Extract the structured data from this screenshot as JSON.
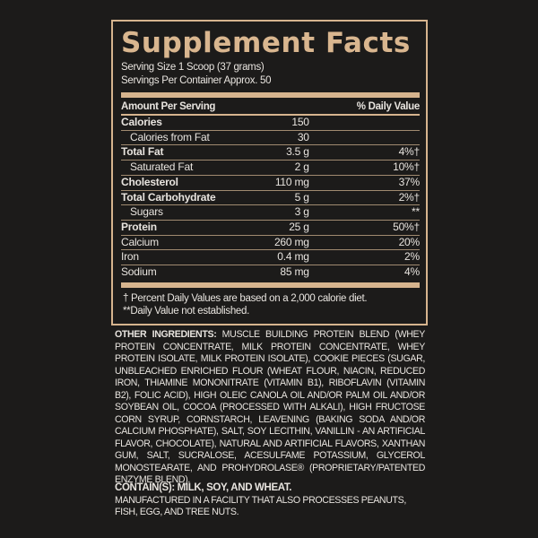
{
  "title": "Supplement Facts",
  "serving_size": "Serving Size 1 Scoop (37 grams)",
  "servings_per_container": "Servings Per Container Approx. 50",
  "header": {
    "amount": "Amount Per Serving",
    "dv": "% Daily Value"
  },
  "rows": [
    {
      "name": "Calories",
      "amount": "150",
      "dv": "",
      "bold": true,
      "indent": false
    },
    {
      "name": "Calories from Fat",
      "amount": "30",
      "dv": "",
      "bold": false,
      "indent": true
    },
    {
      "name": "Total Fat",
      "amount": "3.5 g",
      "dv": "4%†",
      "bold": true,
      "indent": false
    },
    {
      "name": "Saturated Fat",
      "amount": "2 g",
      "dv": "10%†",
      "bold": false,
      "indent": true
    },
    {
      "name": "Cholesterol",
      "amount": "110 mg",
      "dv": "37%",
      "bold": true,
      "indent": false
    },
    {
      "name": "Total Carbohydrate",
      "amount": "5 g",
      "dv": "2%†",
      "bold": true,
      "indent": false
    },
    {
      "name": "Sugars",
      "amount": "3 g",
      "dv": "**",
      "bold": false,
      "indent": true
    },
    {
      "name": "Protein",
      "amount": "25 g",
      "dv": "50%†",
      "bold": true,
      "indent": false
    },
    {
      "name": "Calcium",
      "amount": "260 mg",
      "dv": "20%",
      "bold": false,
      "indent": false
    },
    {
      "name": "Iron",
      "amount": "0.4 mg",
      "dv": "2%",
      "bold": false,
      "indent": false
    },
    {
      "name": "Sodium",
      "amount": "85 mg",
      "dv": "4%",
      "bold": false,
      "indent": false
    }
  ],
  "footnotes": [
    "† Percent Daily Values are based on a 2,000 calorie diet.",
    "**Daily Value not established."
  ],
  "ingredients": {
    "label": "OTHER INGREDIENTS:",
    "text": " MUSCLE BUILDING PROTEIN BLEND (WHEY PROTEIN CONCENTRATE, MILK PROTEIN CONCENTRATE, WHEY PROTEIN ISOLATE, MILK PROTEIN ISOLATE), COOKIE PIECES (SUGAR, UNBLEACHED ENRICHED FLOUR (WHEAT FLOUR, NIACIN, REDUCED IRON, THIAMINE MONONITRATE (VITAMIN B1), RIBOFLAVIN (VITAMIN B2), FOLIC ACID), HIGH OLEIC CANOLA OIL AND/OR PALM OIL AND/OR SOYBEAN OIL, COCOA (PROCESSED WITH ALKALI), HIGH FRUCTOSE CORN SYRUP, CORNSTARCH, LEAVENING (BAKING SODA AND/OR CALCIUM PHOSPHATE), SALT, SOY LECITHIN, VANILLIN - AN ARTIFICIAL FLAVOR, CHOCOLATE), NATURAL AND ARTIFICIAL FLAVORS, XANTHAN GUM, SALT, SUCRALOSE, ACESULFAME POTASSIUM, GLYCEROL MONOSTEARATE, AND PROHYDROLASE® (PROPRIETARY/PATENTED ENZYME BLEND)."
  },
  "contains": "CONTAIN(S): MILK, SOY, AND WHEAT.",
  "facility": "MANUFACTURED IN A FACILITY THAT ALSO PROCESSES PEANUTS, FISH, EGG, AND TREE NUTS.",
  "colors": {
    "background": "#1c1b1a",
    "accent": "#d9b68f",
    "text": "#e8e4df"
  }
}
